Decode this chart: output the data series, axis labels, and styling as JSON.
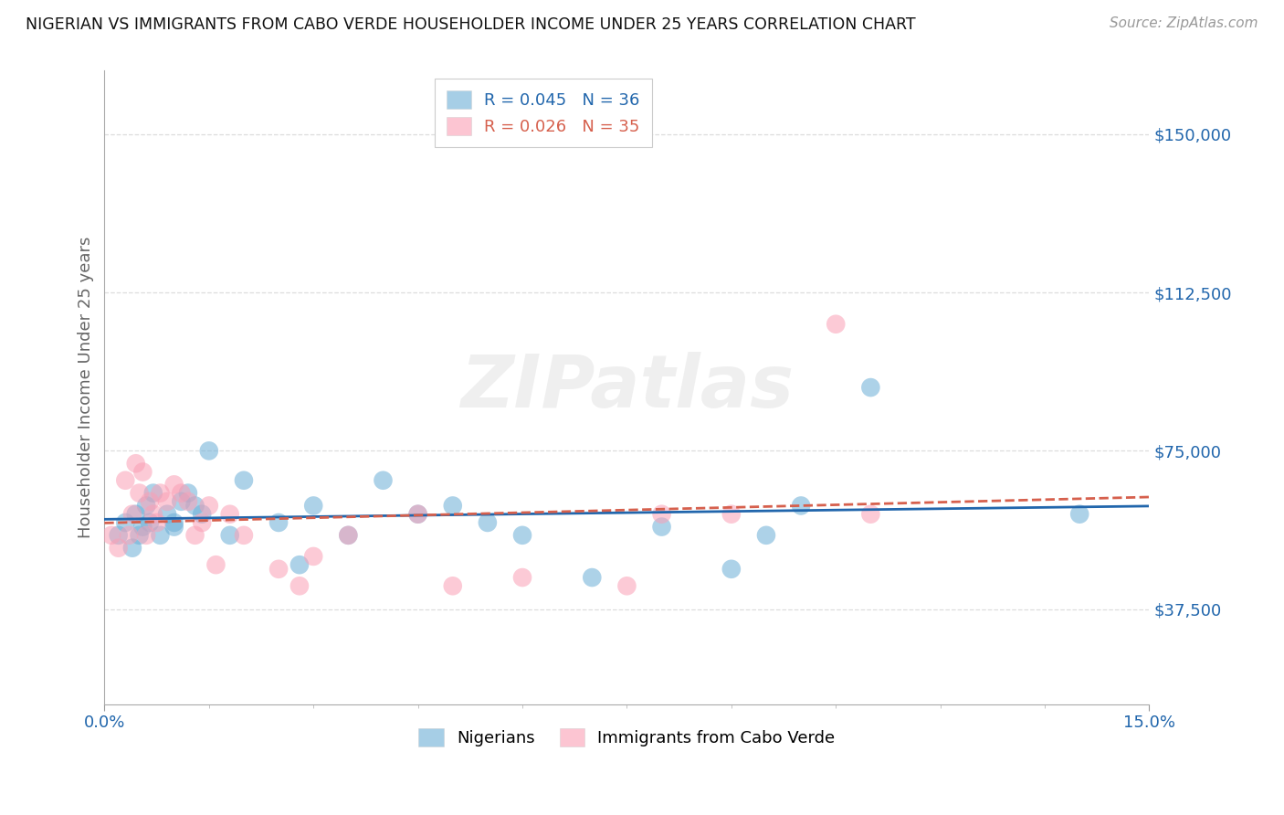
{
  "title": "NIGERIAN VS IMMIGRANTS FROM CABO VERDE HOUSEHOLDER INCOME UNDER 25 YEARS CORRELATION CHART",
  "source": "Source: ZipAtlas.com",
  "ylabel": "Householder Income Under 25 years",
  "xtick_left": "0.0%",
  "xtick_right": "15.0%",
  "xlim": [
    0.0,
    15.0
  ],
  "ylim": [
    15000,
    165000
  ],
  "yticks": [
    37500,
    75000,
    112500,
    150000
  ],
  "ytick_labels": [
    "$37,500",
    "$75,000",
    "$112,500",
    "$150,000"
  ],
  "legend_r_nigerian": "R = 0.045",
  "legend_n_nigerian": "N = 36",
  "legend_r_cabo": "R = 0.026",
  "legend_n_cabo": "N = 35",
  "nigerian_color": "#6baed6",
  "cabo_color": "#fa9fb5",
  "nigerian_line_color": "#2166ac",
  "cabo_line_color": "#d6604d",
  "watermark": "ZIPatlas",
  "legend_label_nigerian": "Nigerians",
  "legend_label_cabo": "Immigrants from Cabo Verde",
  "nigerian_x": [
    0.2,
    0.3,
    0.4,
    0.45,
    0.5,
    0.55,
    0.6,
    0.65,
    0.7,
    0.8,
    0.9,
    1.0,
    1.0,
    1.1,
    1.2,
    1.3,
    1.4,
    1.5,
    1.8,
    2.0,
    2.5,
    2.8,
    3.0,
    3.5,
    4.0,
    4.5,
    5.0,
    5.5,
    6.0,
    7.0,
    8.0,
    9.0,
    9.5,
    10.0,
    11.0,
    14.0
  ],
  "nigerian_y": [
    55000,
    58000,
    52000,
    60000,
    55000,
    57000,
    62000,
    58000,
    65000,
    55000,
    60000,
    58000,
    57000,
    63000,
    65000,
    62000,
    60000,
    75000,
    55000,
    68000,
    58000,
    48000,
    62000,
    55000,
    68000,
    60000,
    62000,
    58000,
    55000,
    45000,
    57000,
    47000,
    55000,
    62000,
    90000,
    60000
  ],
  "cabo_x": [
    0.1,
    0.2,
    0.3,
    0.35,
    0.4,
    0.45,
    0.5,
    0.55,
    0.6,
    0.65,
    0.7,
    0.75,
    0.8,
    0.9,
    1.0,
    1.1,
    1.2,
    1.3,
    1.4,
    1.5,
    1.6,
    1.8,
    2.0,
    2.5,
    2.8,
    3.0,
    3.5,
    4.5,
    5.0,
    6.0,
    7.5,
    8.0,
    9.0,
    10.5,
    11.0
  ],
  "cabo_y": [
    55000,
    52000,
    68000,
    55000,
    60000,
    72000,
    65000,
    70000,
    55000,
    63000,
    60000,
    58000,
    65000,
    63000,
    67000,
    65000,
    63000,
    55000,
    58000,
    62000,
    48000,
    60000,
    55000,
    47000,
    43000,
    50000,
    55000,
    60000,
    43000,
    45000,
    43000,
    60000,
    60000,
    105000,
    60000
  ]
}
